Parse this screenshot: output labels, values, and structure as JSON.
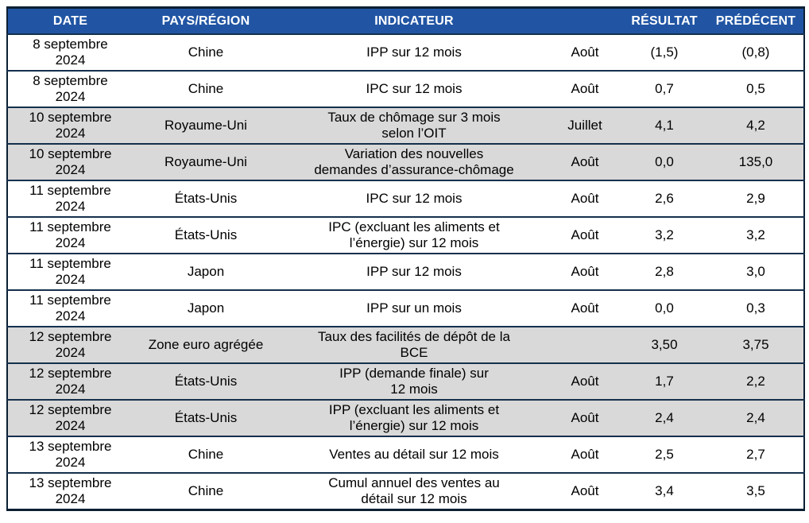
{
  "colors": {
    "header_bg": "#2155A4",
    "header_text": "#FFFFFF",
    "row_alt_bg": "#D9D9D9",
    "grid_line": "#14304C",
    "outer_border": "#0B1F33"
  },
  "table": {
    "columns": [
      {
        "key": "date",
        "label": "DATE"
      },
      {
        "key": "region",
        "label": "PAYS/RÉGION"
      },
      {
        "key": "indicator",
        "label": "INDICATEUR"
      },
      {
        "key": "period",
        "label": ""
      },
      {
        "key": "result",
        "label": "RÉSULTAT"
      },
      {
        "key": "previous",
        "label": "PRÉDÉCENT"
      }
    ],
    "rows": [
      {
        "date": "8 septembre\n2024",
        "region": "Chine",
        "indicator": "IPP sur 12 mois",
        "period": "Août",
        "result": "(1,5)",
        "previous": "(0,8)"
      },
      {
        "date": "8 septembre\n2024",
        "region": "Chine",
        "indicator": "IPC sur 12 mois",
        "period": "Août",
        "result": "0,7",
        "previous": "0,5"
      },
      {
        "date": "10 septembre\n2024",
        "region": "Royaume-Uni",
        "indicator": "Taux de chômage sur 3 mois\nselon l’OIT",
        "period": "Juillet",
        "result": "4,1",
        "previous": "4,2"
      },
      {
        "date": "10 septembre\n2024",
        "region": "Royaume-Uni",
        "indicator": "Variation des nouvelles\ndemandes d’assurance-chômage",
        "period": "Août",
        "result": "0,0",
        "previous": "135,0"
      },
      {
        "date": "11 septembre\n2024",
        "region": "États-Unis",
        "indicator": "IPC sur 12 mois",
        "period": "Août",
        "result": "2,6",
        "previous": "2,9"
      },
      {
        "date": "11 septembre\n2024",
        "region": "États-Unis",
        "indicator": "IPC (excluant les aliments et\nl’énergie) sur 12 mois",
        "period": "Août",
        "result": "3,2",
        "previous": "3,2"
      },
      {
        "date": "11 septembre\n2024",
        "region": "Japon",
        "indicator": "IPP sur 12 mois",
        "period": "Août",
        "result": "2,8",
        "previous": "3,0"
      },
      {
        "date": "11 septembre\n2024",
        "region": "Japon",
        "indicator": "IPP sur un mois",
        "period": "Août",
        "result": "0,0",
        "previous": "0,3"
      },
      {
        "date": "12 septembre\n2024",
        "region": "Zone euro agrégée",
        "indicator": "Taux des facilités de dépôt de la\nBCE",
        "period": "",
        "result": "3,50",
        "previous": "3,75"
      },
      {
        "date": "12 septembre\n2024",
        "region": "États-Unis",
        "indicator": "IPP (demande finale) sur\n12 mois",
        "period": "Août",
        "result": "1,7",
        "previous": "2,2"
      },
      {
        "date": "12 septembre\n2024",
        "region": "États-Unis",
        "indicator": "IPP (excluant les aliments et\nl’énergie) sur 12 mois",
        "period": "Août",
        "result": "2,4",
        "previous": "2,4"
      },
      {
        "date": "13 septembre\n2024",
        "region": "Chine",
        "indicator": "Ventes au détail sur 12 mois",
        "period": "Août",
        "result": "2,5",
        "previous": "2,7"
      },
      {
        "date": "13 septembre\n2024",
        "region": "Chine",
        "indicator": "Cumul annuel des ventes au\ndétail sur 12 mois",
        "period": "Août",
        "result": "3,4",
        "previous": "3,5"
      }
    ]
  }
}
